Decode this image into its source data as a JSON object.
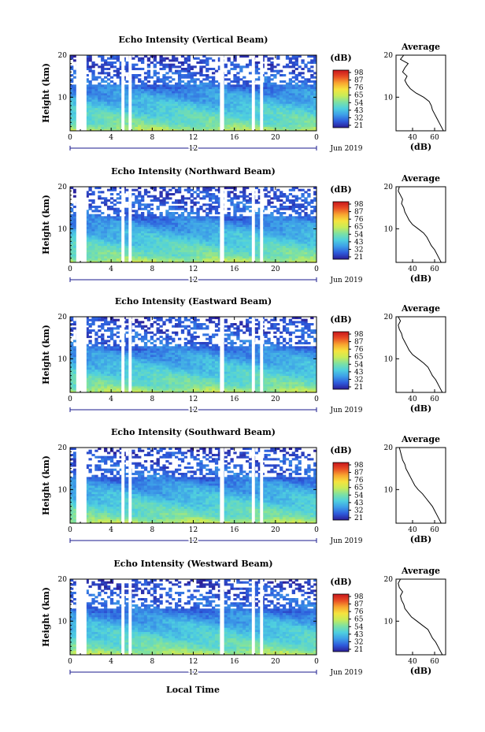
{
  "xlabel": "Local Time",
  "date_label": "Jun 2019",
  "day_marker": "12",
  "colorbar_label": "(dB)",
  "colorbar_ticks": [
    "98",
    "87",
    "76",
    "65",
    "54",
    "43",
    "32",
    "21"
  ],
  "avg_title": "Average",
  "avg_xlabel": "(dB)",
  "ylabel": "Height (km)",
  "colors": {
    "colormap": [
      "#2c1d96",
      "#2d5bdc",
      "#3d9ee8",
      "#4fd0df",
      "#7de1a3",
      "#c9ec58",
      "#f6e33e",
      "#f8a530",
      "#e84c24",
      "#c8161c"
    ],
    "axis": "#000000",
    "marker_line": "#1a1a8c"
  },
  "chart_data": [
    {
      "type": "heatmap",
      "title": "Echo Intensity (Vertical Beam)",
      "ylabel": "Height (km)",
      "xlabel": "",
      "x_ticks": [
        "0",
        "4",
        "8",
        "12",
        "16",
        "20",
        "0"
      ],
      "y_ticks": [
        "20",
        "10"
      ],
      "xlim": [
        0,
        24
      ],
      "ylim": [
        2,
        20
      ],
      "clim": [
        21,
        98
      ],
      "data_gaps_hours": [
        [
          0.6,
          1.6
        ],
        [
          5.0,
          5.3
        ],
        [
          5.7,
          6.0
        ],
        [
          14.6,
          15.0
        ],
        [
          17.7,
          18.0
        ],
        [
          18.5,
          18.8
        ]
      ],
      "average_profile": {
        "title": "Average",
        "xlabel": "(dB)",
        "x_ticks": [
          "40",
          "60"
        ],
        "y_ticks": [
          "20",
          "10"
        ],
        "xlim": [
          25,
          70
        ],
        "height_km": [
          2,
          3,
          4,
          5,
          6,
          7,
          8,
          9,
          10,
          11,
          12,
          13,
          14,
          15,
          16,
          17,
          18,
          19,
          20
        ],
        "db": [
          68,
          66,
          64,
          62,
          60,
          58,
          57,
          55,
          50,
          43,
          38,
          35,
          33,
          35,
          31,
          33,
          36,
          29,
          32
        ]
      }
    },
    {
      "type": "heatmap",
      "title": "Echo Intensity (Northward Beam)",
      "ylabel": "Height (km)",
      "xlabel": "",
      "x_ticks": [
        "0",
        "4",
        "8",
        "12",
        "16",
        "20",
        "0"
      ],
      "y_ticks": [
        "20",
        "10"
      ],
      "xlim": [
        0,
        24
      ],
      "ylim": [
        2,
        20
      ],
      "clim": [
        21,
        98
      ],
      "data_gaps_hours": [
        [
          0.6,
          1.6
        ],
        [
          5.0,
          5.3
        ],
        [
          5.7,
          6.0
        ],
        [
          14.6,
          15.0
        ],
        [
          17.7,
          18.0
        ],
        [
          18.5,
          18.8
        ]
      ],
      "average_profile": {
        "title": "Average",
        "xlabel": "(dB)",
        "x_ticks": [
          "40",
          "60"
        ],
        "y_ticks": [
          "20",
          "10"
        ],
        "xlim": [
          25,
          70
        ],
        "height_km": [
          2,
          3,
          4,
          5,
          6,
          7,
          8,
          9,
          10,
          11,
          12,
          13,
          14,
          15,
          16,
          17,
          18,
          19,
          20
        ],
        "db": [
          66,
          64,
          62,
          60,
          57,
          55,
          53,
          50,
          45,
          40,
          37,
          35,
          33,
          32,
          30,
          31,
          29,
          27,
          28
        ]
      }
    },
    {
      "type": "heatmap",
      "title": "Echo Intensity (Eastward Beam)",
      "ylabel": "Height (km)",
      "xlabel": "",
      "x_ticks": [
        "0",
        "4",
        "8",
        "12",
        "16",
        "20",
        "0"
      ],
      "y_ticks": [
        "20",
        "10"
      ],
      "xlim": [
        0,
        24
      ],
      "ylim": [
        2,
        20
      ],
      "clim": [
        21,
        98
      ],
      "data_gaps_hours": [
        [
          0.6,
          1.6
        ],
        [
          5.0,
          5.3
        ],
        [
          5.7,
          6.0
        ],
        [
          14.6,
          15.0
        ],
        [
          17.7,
          18.0
        ],
        [
          18.5,
          18.8
        ]
      ],
      "average_profile": {
        "title": "Average",
        "xlabel": "(dB)",
        "x_ticks": [
          "40",
          "60"
        ],
        "y_ticks": [
          "20",
          "10"
        ],
        "xlim": [
          25,
          70
        ],
        "height_km": [
          2,
          3,
          4,
          5,
          6,
          7,
          8,
          9,
          10,
          11,
          12,
          13,
          14,
          15,
          16,
          17,
          18,
          19,
          20
        ],
        "db": [
          67,
          65,
          63,
          61,
          58,
          56,
          54,
          50,
          45,
          40,
          37,
          35,
          33,
          31,
          30,
          28,
          27,
          29,
          27
        ]
      }
    },
    {
      "type": "heatmap",
      "title": "Echo Intensity (Southward Beam)",
      "ylabel": "Height (km)",
      "xlabel": "",
      "x_ticks": [
        "0",
        "4",
        "8",
        "12",
        "16",
        "20",
        "0"
      ],
      "y_ticks": [
        "20",
        "10"
      ],
      "xlim": [
        0,
        24
      ],
      "ylim": [
        2,
        20
      ],
      "clim": [
        21,
        98
      ],
      "data_gaps_hours": [
        [
          0.6,
          1.6
        ],
        [
          5.0,
          5.3
        ],
        [
          5.7,
          6.0
        ],
        [
          14.6,
          15.0
        ],
        [
          17.7,
          18.0
        ],
        [
          18.5,
          18.8
        ]
      ],
      "average_profile": {
        "title": "Average",
        "xlabel": "(dB)",
        "x_ticks": [
          "40",
          "60"
        ],
        "y_ticks": [
          "20",
          "10"
        ],
        "xlim": [
          25,
          70
        ],
        "height_km": [
          2,
          3,
          4,
          5,
          6,
          7,
          8,
          9,
          10,
          11,
          12,
          13,
          14,
          15,
          16,
          17,
          18,
          19,
          20
        ],
        "db": [
          66,
          64,
          62,
          60,
          58,
          55,
          52,
          49,
          45,
          42,
          40,
          38,
          36,
          34,
          33,
          31,
          30,
          29,
          28
        ]
      }
    },
    {
      "type": "heatmap",
      "title": "Echo Intensity (Westward Beam)",
      "ylabel": "Height (km)",
      "xlabel": "Local Time",
      "x_ticks": [
        "0",
        "4",
        "8",
        "12",
        "16",
        "20",
        "0"
      ],
      "y_ticks": [
        "20",
        "10"
      ],
      "xlim": [
        0,
        24
      ],
      "ylim": [
        2,
        20
      ],
      "clim": [
        21,
        98
      ],
      "data_gaps_hours": [
        [
          0.6,
          1.6
        ],
        [
          5.0,
          5.3
        ],
        [
          5.7,
          6.0
        ],
        [
          14.6,
          15.0
        ],
        [
          17.7,
          18.0
        ],
        [
          18.5,
          18.8
        ]
      ],
      "average_profile": {
        "title": "Average",
        "xlabel": "(dB)",
        "x_ticks": [
          "40",
          "60"
        ],
        "y_ticks": [
          "20",
          "10"
        ],
        "xlim": [
          25,
          70
        ],
        "height_km": [
          2,
          3,
          4,
          5,
          6,
          7,
          8,
          9,
          10,
          11,
          12,
          13,
          14,
          15,
          16,
          17,
          18,
          19,
          20
        ],
        "db": [
          67,
          65,
          63,
          61,
          58,
          56,
          54,
          49,
          44,
          39,
          36,
          33,
          32,
          30,
          29,
          31,
          28,
          27,
          29
        ]
      }
    }
  ]
}
